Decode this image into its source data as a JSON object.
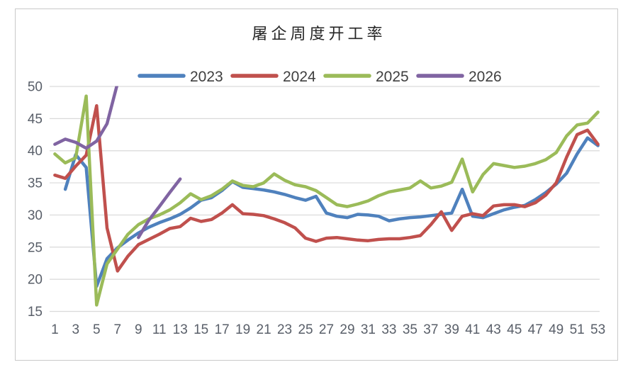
{
  "chart_data": {
    "type": "line",
    "title": "屠企周度开工率",
    "xlabel": "",
    "ylabel": "",
    "ylim": [
      15,
      50
    ],
    "y_ticks": [
      15,
      20,
      25,
      30,
      35,
      40,
      45,
      50
    ],
    "x_min": 1,
    "x_max": 53,
    "x_tick_labels": [
      "1",
      "3",
      "5",
      "7",
      "9",
      "11",
      "13",
      "15",
      "17",
      "19",
      "21",
      "23",
      "25",
      "27",
      "29",
      "31",
      "33",
      "35",
      "37",
      "39",
      "41",
      "43",
      "45",
      "47",
      "49",
      "51",
      "53"
    ],
    "grid": true,
    "legend_position": "top-center",
    "colors": {
      "grid": "#d9d9d9",
      "frame": "#c9c9c9",
      "axis_text": "#595f69",
      "title_text": "#262626"
    },
    "series": [
      {
        "name": "2023",
        "color": "#4F81BD",
        "values": [
          null,
          34,
          39.4,
          37.4,
          18.9,
          23.2,
          24.9,
          26.1,
          27.2,
          28.1,
          28.8,
          29.4,
          30.1,
          31.1,
          32.3,
          32.7,
          33.8,
          35.2,
          34.3,
          34.1,
          33.9,
          33.6,
          33.2,
          32.7,
          32.3,
          32.9,
          30.3,
          29.8,
          29.6,
          30.1,
          30,
          29.8,
          29.1,
          29.4,
          29.6,
          29.7,
          29.9,
          30.1,
          30.3,
          34,
          29.8,
          29.6,
          30.2,
          30.8,
          31.2,
          31.5,
          32.4,
          33.5,
          34.8,
          36.5,
          39.5,
          42,
          40.8
        ]
      },
      {
        "name": "2024",
        "color": "#C0504D",
        "values": [
          36.2,
          35.7,
          37.6,
          39.3,
          47,
          28,
          21.3,
          23.6,
          25.4,
          26.2,
          27,
          27.9,
          28.2,
          29.5,
          29,
          29.3,
          30.3,
          31.6,
          30.2,
          30.1,
          29.9,
          29.4,
          28.8,
          28,
          26.4,
          25.9,
          26.4,
          26.5,
          26.3,
          26.1,
          26,
          26.2,
          26.3,
          26.3,
          26.5,
          26.8,
          28.5,
          30.5,
          27.6,
          29.8,
          30.2,
          29.9,
          31.4,
          31.6,
          31.6,
          31.3,
          31.9,
          33.1,
          35,
          39,
          42.5,
          43.2,
          41
        ]
      },
      {
        "name": "2025",
        "color": "#9BBB59",
        "values": [
          39.5,
          38.1,
          38.9,
          48.5,
          16,
          22.4,
          24.7,
          27,
          28.5,
          29.4,
          30,
          30.8,
          31.9,
          33.3,
          32.4,
          33,
          34,
          35.3,
          34.6,
          34.4,
          35,
          36.4,
          35.4,
          34.7,
          34.4,
          33.8,
          32.7,
          31.6,
          31.3,
          31.7,
          32.2,
          33,
          33.6,
          33.9,
          34.2,
          35.3,
          34.2,
          34.5,
          35.1,
          38.7,
          33.6,
          36.3,
          38,
          37.7,
          37.4,
          37.6,
          38,
          38.6,
          39.7,
          42.3,
          44,
          44.3,
          46
        ]
      },
      {
        "name": "2026",
        "color": "#8064A2",
        "values": [
          41,
          41.8,
          41.3,
          40.4,
          41.5,
          44.2,
          50.5,
          null,
          26.5,
          29.2,
          31.3,
          33.5,
          35.6,
          null,
          null,
          null,
          null,
          null,
          null,
          null,
          null,
          null,
          null,
          null,
          null,
          null,
          null,
          null,
          null,
          null,
          null,
          null,
          null,
          null,
          null,
          null,
          null,
          null,
          null,
          null,
          null,
          null,
          null,
          null,
          null,
          null,
          null,
          null,
          null,
          null,
          null,
          null,
          null
        ]
      }
    ]
  }
}
